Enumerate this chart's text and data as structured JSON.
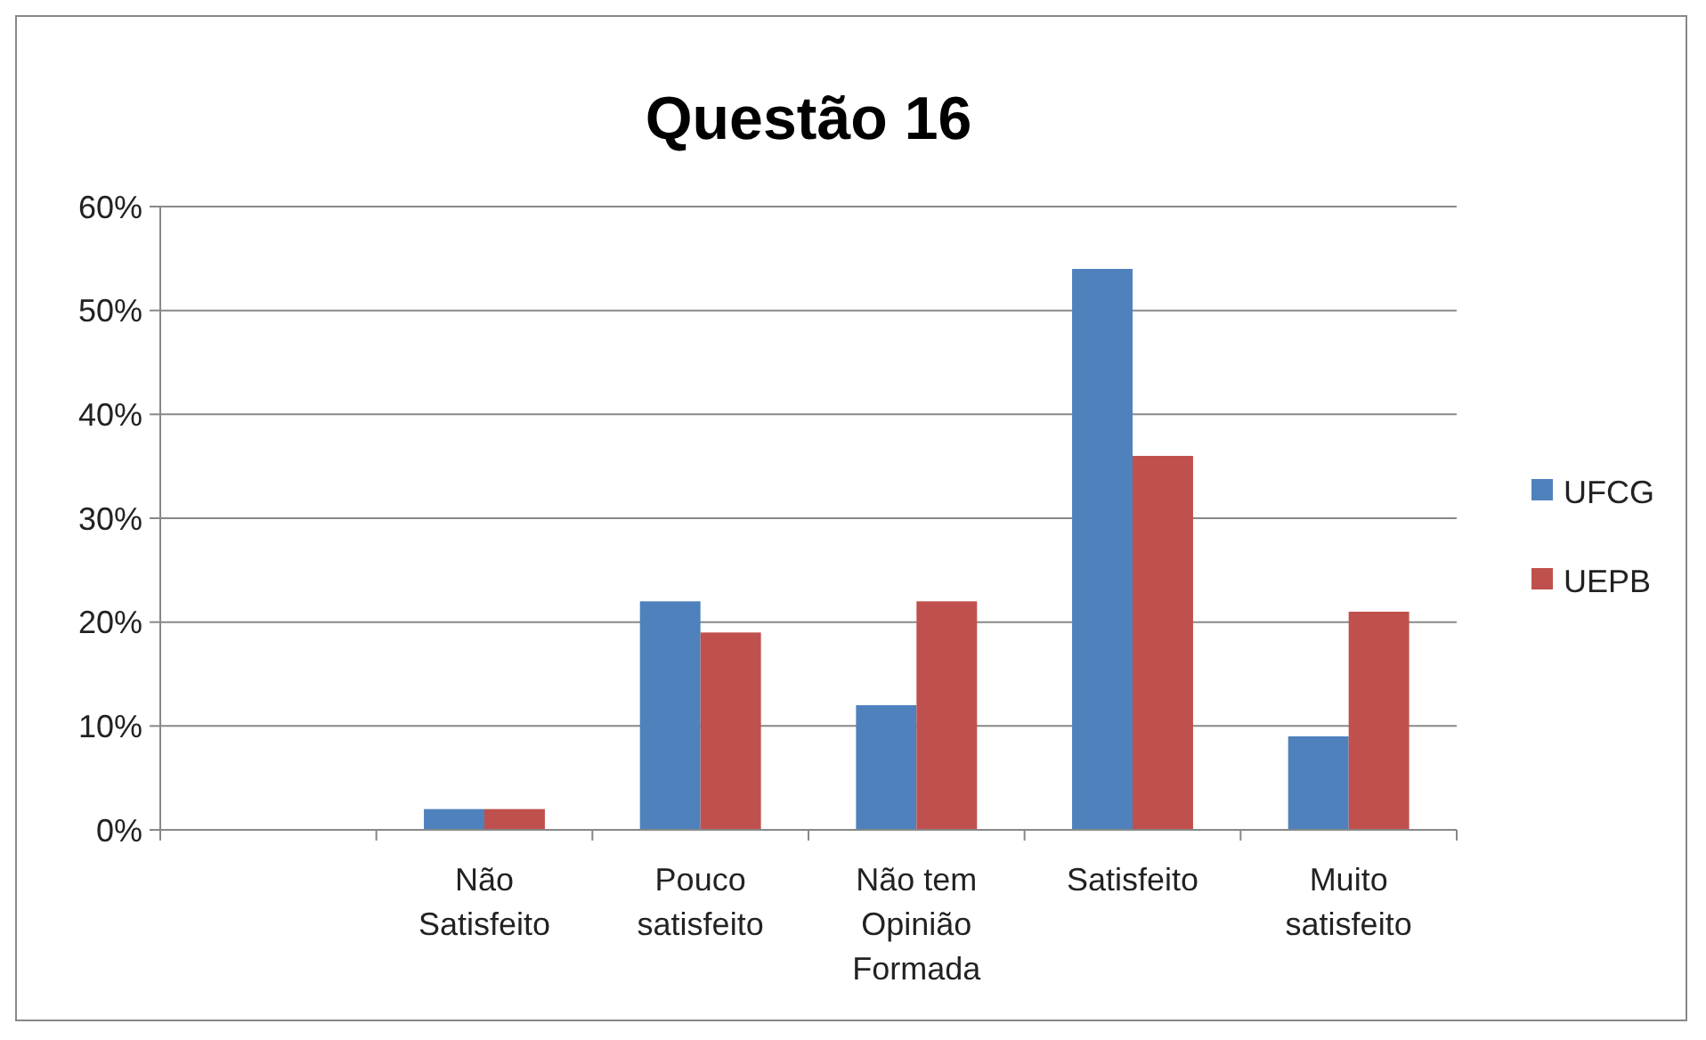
{
  "chart_data": {
    "type": "bar",
    "title": "Questão 16",
    "categories": [
      null,
      "Não Satisfeito",
      "Pouco satisfeito",
      "Não tem Opinião Formada",
      "Satisfeito",
      "Muito satisfeito"
    ],
    "series": [
      {
        "name": "UFCG",
        "color": "#4f81bd",
        "values": [
          null,
          2,
          22,
          12,
          54,
          9
        ]
      },
      {
        "name": "UEPB",
        "color": "#c0504d",
        "values": [
          null,
          2,
          19,
          22,
          36,
          21
        ]
      }
    ],
    "ylim": [
      0,
      60
    ],
    "yticks": [
      {
        "value": 0,
        "label": "0%"
      },
      {
        "value": 10,
        "label": "10%"
      },
      {
        "value": 20,
        "label": "20%"
      },
      {
        "value": 30,
        "label": "30%"
      },
      {
        "value": 40,
        "label": "40%"
      },
      {
        "value": 50,
        "label": "50%"
      },
      {
        "value": 60,
        "label": "60%"
      }
    ],
    "grid": "y",
    "legend": "right"
  }
}
